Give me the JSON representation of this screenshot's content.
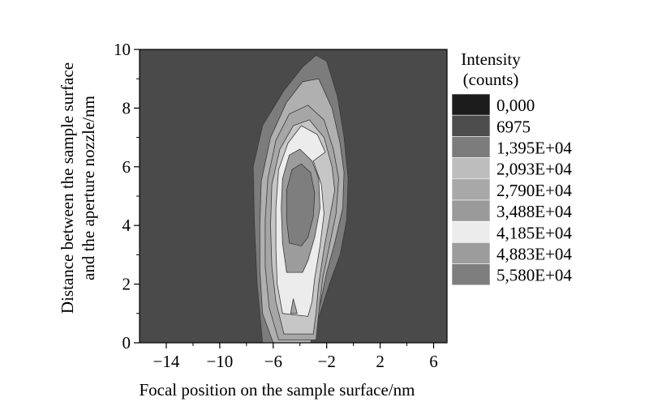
{
  "chart_data": {
    "type": "heatmap",
    "title": "",
    "xlabel": "Focal position on the sample surface/nm",
    "ylabel": [
      "Distance between the sample surface",
      "and the aperture nozzle/nm"
    ],
    "xlim": [
      -16,
      7
    ],
    "ylim": [
      0,
      10
    ],
    "x_ticks": [
      -14,
      -10,
      -6,
      -2,
      2,
      6
    ],
    "x_tick_labels": [
      "−14",
      "−10",
      "−6",
      "−2",
      "2",
      "6"
    ],
    "y_ticks": [
      0,
      2,
      4,
      6,
      8,
      10
    ],
    "y_tick_labels": [
      "0",
      "2",
      "4",
      "6",
      "8",
      "10"
    ],
    "legend_title": [
      "Intensity",
      "(counts)"
    ],
    "legend_position": "right",
    "levels": [
      {
        "label": "0,000",
        "value": 0,
        "color": "#1c1c1c"
      },
      {
        "label": "6975",
        "value": 6975,
        "color": "#4d4d4d"
      },
      {
        "label": "1,395E+04",
        "value": 13950,
        "color": "#7c7c7c"
      },
      {
        "label": "2,093E+04",
        "value": 20930,
        "color": "#bdbdbd"
      },
      {
        "label": "2,790E+04",
        "value": 27900,
        "color": "#a8a8a8"
      },
      {
        "label": "3,488E+04",
        "value": 34880,
        "color": "#9a9a9a"
      },
      {
        "label": "4,185E+04",
        "value": 41850,
        "color": "#ececec"
      },
      {
        "label": "4,883E+04",
        "value": 48830,
        "color": "#9c9c9c"
      },
      {
        "label": "5,580E+04",
        "value": 55800,
        "color": "#7e7e7e"
      }
    ],
    "background_color": "#4a4a4a",
    "contours": [
      {
        "level_index": 2,
        "color": "#7c7c7c",
        "points": [
          [
            -3.6,
            0
          ],
          [
            -6.8,
            0
          ],
          [
            -7.2,
            2
          ],
          [
            -7.4,
            4
          ],
          [
            -7.5,
            6
          ],
          [
            -6.8,
            7.4
          ],
          [
            -5.2,
            8.6
          ],
          [
            -3.8,
            9.4
          ],
          [
            -2.8,
            9.8
          ],
          [
            -2.0,
            9.6
          ],
          [
            -1.2,
            8.4
          ],
          [
            -0.7,
            7
          ],
          [
            -0.4,
            5.6
          ],
          [
            -0.5,
            4.2
          ],
          [
            -1.0,
            3
          ],
          [
            -1.8,
            2
          ],
          [
            -2.5,
            1
          ],
          [
            -3.0,
            0.3
          ]
        ]
      },
      {
        "level_index": 3,
        "color": "#b0b0b0",
        "points": [
          [
            -3.2,
            0
          ],
          [
            -6.0,
            0
          ],
          [
            -6.8,
            1
          ],
          [
            -7.0,
            2.5
          ],
          [
            -7.0,
            4
          ],
          [
            -6.9,
            5.5
          ],
          [
            -6.2,
            7
          ],
          [
            -5.0,
            8.2
          ],
          [
            -3.8,
            8.9
          ],
          [
            -2.6,
            9.0
          ],
          [
            -1.6,
            8
          ],
          [
            -1.0,
            6.8
          ],
          [
            -0.7,
            5.8
          ],
          [
            -0.8,
            4.6
          ],
          [
            -1.4,
            3.4
          ],
          [
            -2.0,
            2.4
          ],
          [
            -2.5,
            1.3
          ]
        ]
      },
      {
        "level_index": 4,
        "color": "#a6a6a6",
        "points": [
          [
            -2.8,
            0.1
          ],
          [
            -5.6,
            0.1
          ],
          [
            -6.3,
            1.2
          ],
          [
            -6.6,
            2.6
          ],
          [
            -6.6,
            4.2
          ],
          [
            -6.4,
            5.6
          ],
          [
            -5.8,
            6.9
          ],
          [
            -4.8,
            7.8
          ],
          [
            -3.4,
            8.1
          ],
          [
            -2.2,
            7.6
          ],
          [
            -1.5,
            6.6
          ],
          [
            -1.1,
            5.6
          ],
          [
            -1.3,
            4.4
          ],
          [
            -1.8,
            3.3
          ],
          [
            -2.3,
            2.2
          ],
          [
            -2.6,
            1.0
          ]
        ]
      },
      {
        "level_index": 5,
        "color": "#c6c6c6",
        "points": [
          [
            -3.0,
            0.3
          ],
          [
            -5.2,
            0.3
          ],
          [
            -5.8,
            1.4
          ],
          [
            -6.1,
            2.6
          ],
          [
            -6.2,
            4.0
          ],
          [
            -6.1,
            5.4
          ],
          [
            -5.5,
            6.6
          ],
          [
            -4.5,
            7.4
          ],
          [
            -3.3,
            7.6
          ],
          [
            -2.2,
            7.0
          ],
          [
            -1.6,
            6.0
          ],
          [
            -1.4,
            5.2
          ],
          [
            -1.8,
            4.2
          ],
          [
            -2.2,
            3.2
          ],
          [
            -2.6,
            2.0
          ],
          [
            -2.8,
            1.0
          ]
        ]
      },
      {
        "level_index": 6,
        "color": "#ececec",
        "points": [
          [
            -3.4,
            0.9
          ],
          [
            -5.3,
            1.0
          ],
          [
            -5.7,
            2.0
          ],
          [
            -5.8,
            3.2
          ],
          [
            -5.8,
            4.6
          ],
          [
            -5.6,
            5.9
          ],
          [
            -4.9,
            6.8
          ],
          [
            -3.9,
            7.4
          ],
          [
            -2.7,
            7.1
          ],
          [
            -2.1,
            6.5
          ],
          [
            -3.0,
            6.2
          ],
          [
            -2.4,
            5.4
          ],
          [
            -2.2,
            4.4
          ],
          [
            -2.5,
            3.3
          ],
          [
            -2.9,
            2.2
          ],
          [
            -3.1,
            1.4
          ]
        ]
      },
      {
        "level_index": 7,
        "color": "#9c9c9c",
        "points": [
          [
            -3.8,
            2.4
          ],
          [
            -5.0,
            2.4
          ],
          [
            -5.3,
            3.4
          ],
          [
            -5.4,
            4.6
          ],
          [
            -5.3,
            5.6
          ],
          [
            -4.8,
            6.4
          ],
          [
            -4.0,
            6.6
          ],
          [
            -3.1,
            6.2
          ],
          [
            -2.6,
            5.6
          ],
          [
            -2.5,
            4.6
          ],
          [
            -2.9,
            3.6
          ],
          [
            -3.4,
            2.8
          ]
        ]
      },
      {
        "level_index": 8,
        "color": "#7e7e7e",
        "points": [
          [
            -3.9,
            3.3
          ],
          [
            -4.8,
            3.4
          ],
          [
            -5.0,
            4.2
          ],
          [
            -5.0,
            5.2
          ],
          [
            -4.6,
            5.9
          ],
          [
            -3.9,
            6.1
          ],
          [
            -3.2,
            5.8
          ],
          [
            -2.9,
            5.1
          ],
          [
            -3.0,
            4.3
          ],
          [
            -3.4,
            3.6
          ]
        ]
      },
      {
        "level_index": 4,
        "color": "#a6a6a6",
        "points": [
          [
            -4.2,
            1.0
          ],
          [
            -4.7,
            1.0
          ],
          [
            -4.5,
            1.5
          ]
        ]
      }
    ]
  }
}
